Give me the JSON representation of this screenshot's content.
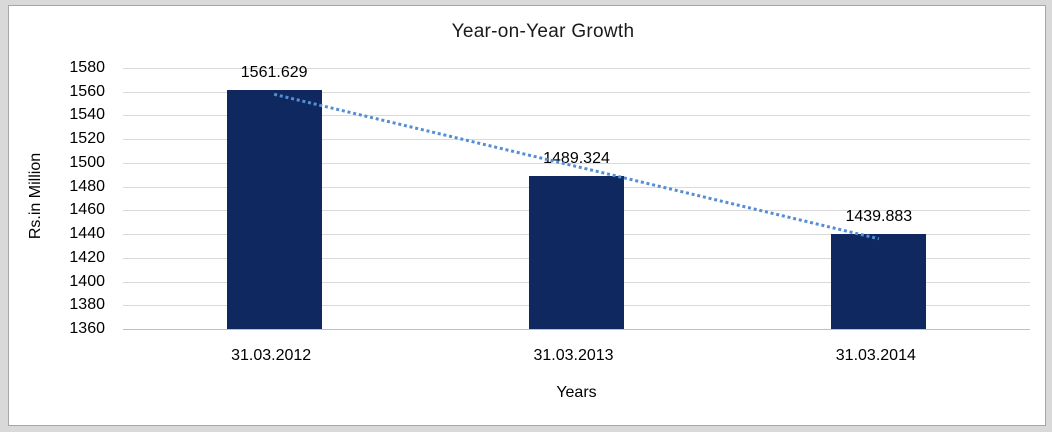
{
  "chart_data": {
    "type": "bar",
    "title": "Year-on-Year Growth",
    "categories": [
      "31.03.2012",
      "31.03.2013",
      "31.03.2014"
    ],
    "values": [
      1561.629,
      1489.324,
      1439.883
    ],
    "data_labels": [
      "1561.629",
      "1489.324",
      "1439.883"
    ],
    "xlabel": "Years",
    "ylabel": "Rs.in Million",
    "ylim": [
      1360,
      1580
    ],
    "ytick_step": 20,
    "grid": true,
    "legend": "none",
    "trendline": {
      "type": "linear",
      "style": "dotted"
    },
    "colors": {
      "bar": "#0F2860",
      "trendline": "#558ED5",
      "gridline": "#D9D9D9",
      "axis_line": "#BFBFBF",
      "text": "#000000",
      "panel_border": "#A6A6A6",
      "outer_background": "#D9D9D9",
      "panel_background": "#FFFFFF"
    }
  }
}
